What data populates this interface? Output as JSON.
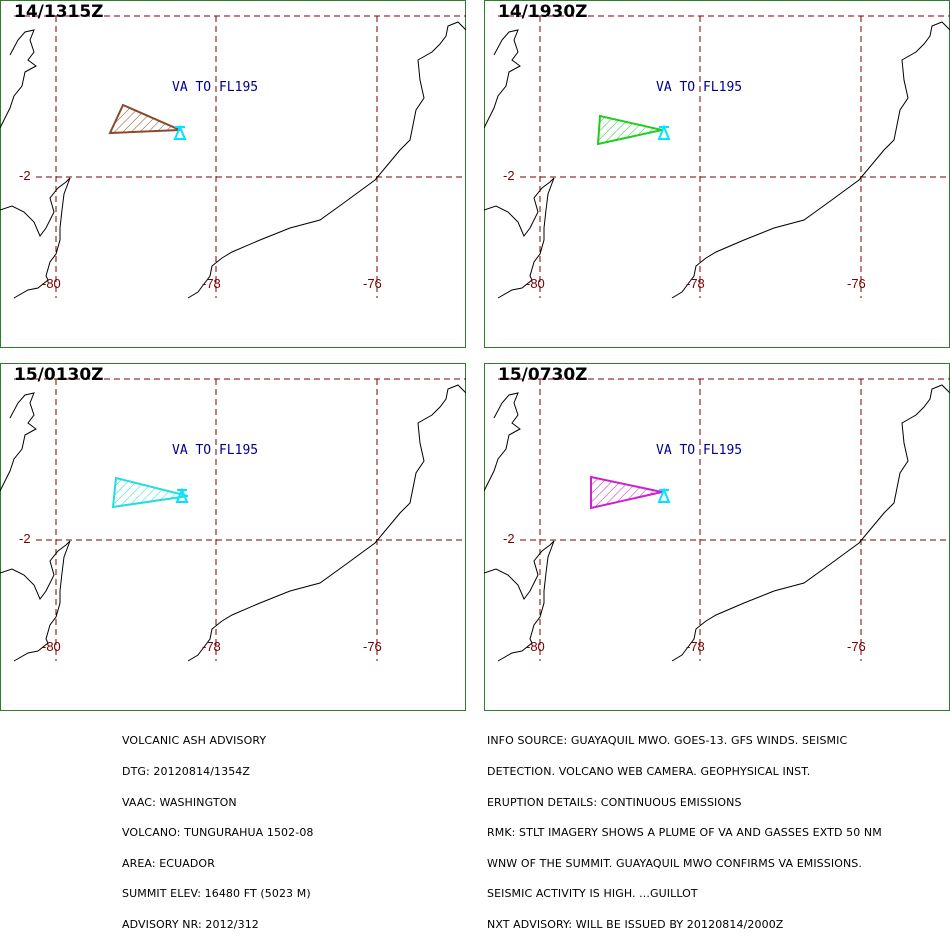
{
  "panels": [
    {
      "time": "14/1315Z",
      "va_label": "VA TO FL195",
      "color": "#8b4a2b"
    },
    {
      "time": "14/1930Z",
      "va_label": "VA TO FL195",
      "color": "#22cc22"
    },
    {
      "time": "15/0130Z",
      "va_label": "VA TO FL195",
      "color": "#22dddd"
    },
    {
      "time": "15/0730Z",
      "va_label": "VA TO FL195",
      "color": "#cc22cc"
    }
  ],
  "grid": {
    "lat_label": "-2",
    "lon_labels": [
      "-80",
      "-78",
      "-76"
    ]
  },
  "advisory_left": [
    "VOLCANIC ASH ADVISORY",
    "DTG: 20120814/1354Z",
    "VAAC: WASHINGTON",
    "VOLCANO: TUNGURAHUA 1502-08",
    "AREA: ECUADOR",
    "SUMMIT ELEV: 16480 FT (5023 M)",
    "ADVISORY NR: 2012/312"
  ],
  "advisory_right": [
    "INFO SOURCE: GUAYAQUIL MWO. GOES-13. GFS WINDS. SEISMIC",
    "DETECTION. VOLCANO WEB CAMERA. GEOPHYSICAL INST.",
    "ERUPTION DETAILS: CONTINUOUS EMISSIONS",
    "RMK: STLT IMAGERY SHOWS A PLUME OF VA AND GASSES EXTD 50 NM",
    "WNW OF THE SUMMIT. GUAYAQUIL MWO CONFIRMS VA EMISSIONS.",
    "SEISMIC ACTIVITY IS HIGH. ...GUILLOT",
    "NXT ADVISORY: WILL BE ISSUED BY 20120814/2000Z"
  ],
  "colors": {
    "border": "#2e7d2e",
    "grid": "#7a0000",
    "va_text": "#00008b",
    "volcano": "#00e5ff"
  },
  "icons": {
    "volcano": "volcano-marker-icon"
  }
}
